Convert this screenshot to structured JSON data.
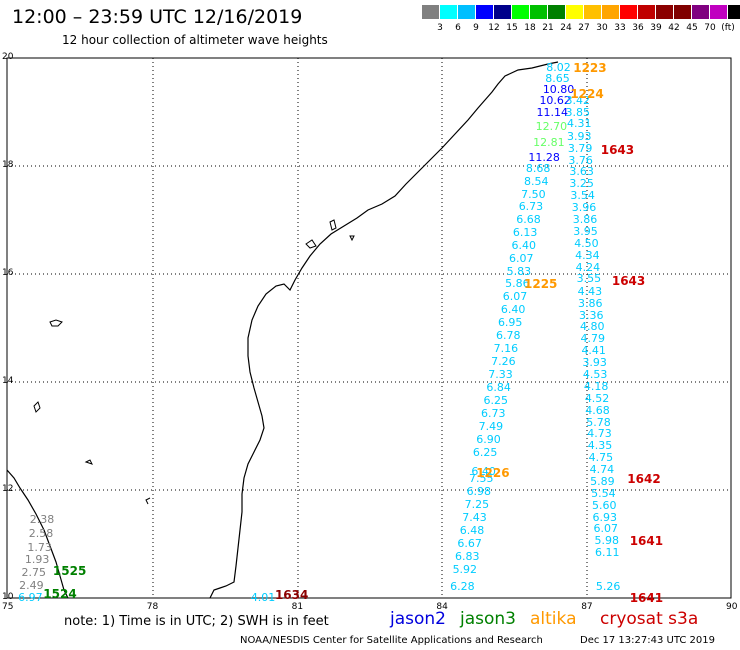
{
  "title": "12:00 – 23:59 UTC 12/16/2019",
  "subtitle": "12 hour collection of altimeter wave heights",
  "scale": {
    "colors": [
      "#808080",
      "#00ffff",
      "#00bfff",
      "#0000ff",
      "#00008b",
      "#00ff00",
      "#00c000",
      "#008000",
      "#ffff00",
      "#ffc000",
      "#ffa500",
      "#ff0000",
      "#c00000",
      "#8b0000",
      "#800000",
      "#800080",
      "#c000c0",
      "#000000"
    ],
    "labels": [
      "3",
      "6",
      "9",
      "12",
      "15",
      "18",
      "21",
      "24",
      "27",
      "30",
      "33",
      "36",
      "39",
      "42",
      "45",
      "70",
      "(ft)"
    ]
  },
  "axes": {
    "x_ticks": [
      "75",
      "78",
      "81",
      "84",
      "87",
      "90"
    ],
    "y_ticks": [
      "20",
      "18",
      "16",
      "14",
      "12",
      "10"
    ],
    "lon_range": [
      75,
      90
    ],
    "lat_range": [
      10,
      20
    ]
  },
  "note": "note: 1) Time is in UTC; 2) SWH is in feet",
  "legend": [
    {
      "name": "jason2",
      "color": "#0000dd"
    },
    {
      "name": "jason3",
      "color": "#008000"
    },
    {
      "name": "altika",
      "color": "#ff9900"
    },
    {
      "name": "cryosat s3a",
      "color": "#cc0000"
    }
  ],
  "footer_left": "NOAA/NESDIS Center for Satellite Applications and Research",
  "footer_right": "Dec 17 13:27:43 UTC 2019",
  "time_labels": [
    {
      "text": "1223",
      "color": "#ff9900",
      "lon": 86.98,
      "lat": 19.81
    },
    {
      "text": "1224",
      "color": "#ff9900",
      "lon": 86.92,
      "lat": 19.34
    },
    {
      "text": "1643",
      "color": "#cc0000",
      "lon": 87.55,
      "lat": 18.29
    },
    {
      "text": "1225",
      "color": "#ff9900",
      "lon": 85.96,
      "lat": 15.81
    },
    {
      "text": "1643",
      "color": "#cc0000",
      "lon": 87.78,
      "lat": 15.87
    },
    {
      "text": "1226",
      "color": "#ff9900",
      "lon": 84.97,
      "lat": 12.32
    },
    {
      "text": "1642",
      "color": "#cc0000",
      "lon": 88.1,
      "lat": 12.21
    },
    {
      "text": "1641",
      "color": "#cc0000",
      "lon": 88.15,
      "lat": 11.05
    },
    {
      "text": "1641",
      "color": "#cc0000",
      "lon": 88.15,
      "lat": 10.0
    },
    {
      "text": "1525",
      "color": "#008000",
      "lon": 76.2,
      "lat": 10.5
    },
    {
      "text": "1524",
      "color": "#008000",
      "lon": 76.0,
      "lat": 10.07
    },
    {
      "text": "1634",
      "color": "#8b0000",
      "lon": 80.8,
      "lat": 10.05
    }
  ],
  "track_altika": {
    "color": "#00ccff",
    "points": [
      [
        "8.02",
        86.42,
        19.81,
        "#00ccff"
      ],
      [
        "8.65",
        86.4,
        19.61,
        "#00ccff"
      ],
      [
        "10.80",
        86.35,
        19.4,
        "#0000ff"
      ],
      [
        "10.62",
        86.28,
        19.2,
        "#0000ff"
      ],
      [
        "11.14",
        86.22,
        18.99,
        "#0000ff"
      ],
      [
        "12.70",
        86.2,
        18.72,
        "#66ff66"
      ],
      [
        "12.81",
        86.15,
        18.42,
        "#66ff66"
      ],
      [
        "11.28",
        86.05,
        18.15,
        "#0000ff"
      ],
      [
        "8.68",
        86.0,
        17.95,
        "#00ccff"
      ],
      [
        "8.54",
        85.96,
        17.71,
        "#00ccff"
      ],
      [
        "7.50",
        85.9,
        17.47,
        "#00ccff"
      ],
      [
        "6.73",
        85.85,
        17.24,
        "#00ccff"
      ],
      [
        "6.68",
        85.8,
        17.0,
        "#00ccff"
      ],
      [
        "6.13",
        85.73,
        16.76,
        "#00ccff"
      ],
      [
        "6.40",
        85.7,
        16.52,
        "#00ccff"
      ],
      [
        "6.07",
        85.65,
        16.28,
        "#00ccff"
      ],
      [
        "5.83",
        85.6,
        16.04,
        "#00ccff"
      ],
      [
        "5.86",
        85.57,
        15.81,
        "#00ccff"
      ],
      [
        "6.07",
        85.52,
        15.57,
        "#00ccff"
      ],
      [
        "6.40",
        85.48,
        15.33,
        "#00ccff"
      ],
      [
        "6.95",
        85.42,
        15.09,
        "#00ccff"
      ],
      [
        "6.78",
        85.38,
        14.85,
        "#00ccff"
      ],
      [
        "7.16",
        85.33,
        14.61,
        "#00ccff"
      ],
      [
        "7.26",
        85.28,
        14.37,
        "#00ccff"
      ],
      [
        "7.33",
        85.22,
        14.13,
        "#00ccff"
      ],
      [
        "6.84",
        85.18,
        13.89,
        "#00ccff"
      ],
      [
        "6.25",
        85.12,
        13.65,
        "#00ccff"
      ],
      [
        "6.73",
        85.07,
        13.41,
        "#00ccff"
      ],
      [
        "7.49",
        85.02,
        13.17,
        "#00ccff"
      ],
      [
        "6.90",
        84.97,
        12.93,
        "#00ccff"
      ],
      [
        "6.25",
        84.9,
        12.69,
        "#00ccff"
      ],
      [
        "6.40",
        84.87,
        12.34,
        "#00ccff"
      ],
      [
        "7.55",
        84.82,
        12.2,
        "#00ccff"
      ],
      [
        "6.98",
        84.77,
        11.96,
        "#00ccff"
      ],
      [
        "7.25",
        84.73,
        11.72,
        "#00ccff"
      ],
      [
        "7.43",
        84.68,
        11.48,
        "#00ccff"
      ],
      [
        "6.48",
        84.63,
        11.24,
        "#00ccff"
      ],
      [
        "6.67",
        84.58,
        11.0,
        "#00ccff"
      ],
      [
        "6.83",
        84.53,
        10.76,
        "#00ccff"
      ],
      [
        "5.92",
        84.48,
        10.52,
        "#00ccff"
      ],
      [
        "6.28",
        84.43,
        10.2,
        "#00ccff"
      ]
    ]
  },
  "track_cryosat": {
    "color": "#00ccff",
    "points": [
      [
        "3.42",
        86.82,
        19.2
      ],
      [
        "3.85",
        86.82,
        18.98
      ],
      [
        "4.31",
        86.85,
        18.77
      ],
      [
        "3.93",
        86.85,
        18.54
      ],
      [
        "3.79",
        86.87,
        18.32
      ],
      [
        "3.76",
        86.88,
        18.1
      ],
      [
        "3.63",
        86.9,
        17.88
      ],
      [
        "3.25",
        86.9,
        17.66
      ],
      [
        "3.54",
        86.92,
        17.44
      ],
      [
        "3.96",
        86.95,
        17.22
      ],
      [
        "3.86",
        86.97,
        17.0
      ],
      [
        "3.95",
        86.98,
        16.78
      ],
      [
        "4.50",
        87.0,
        16.56
      ],
      [
        "4.34",
        87.02,
        16.34
      ],
      [
        "4.24",
        87.03,
        16.12
      ],
      [
        "3.55",
        87.05,
        15.9
      ],
      [
        "4.43",
        87.07,
        15.67
      ],
      [
        "3.86",
        87.08,
        15.45
      ],
      [
        "3.36",
        87.1,
        15.23
      ],
      [
        "4.80",
        87.12,
        15.01
      ],
      [
        "4.79",
        87.13,
        14.79
      ],
      [
        "4.41",
        87.15,
        14.57
      ],
      [
        "3.93",
        87.17,
        14.35
      ],
      [
        "4.53",
        87.18,
        14.13
      ],
      [
        "4.18",
        87.2,
        13.91
      ],
      [
        "4.52",
        87.22,
        13.69
      ],
      [
        "4.68",
        87.23,
        13.47
      ],
      [
        "5.78",
        87.25,
        13.25
      ],
      [
        "4.73",
        87.27,
        13.03
      ],
      [
        "4.35",
        87.28,
        12.81
      ],
      [
        "4.75",
        87.3,
        12.59
      ],
      [
        "4.74",
        87.32,
        12.37
      ],
      [
        "5.89",
        87.33,
        12.15
      ],
      [
        "5.54",
        87.35,
        11.93
      ],
      [
        "5.60",
        87.37,
        11.71
      ],
      [
        "6.93",
        87.38,
        11.49
      ],
      [
        "6.07",
        87.4,
        11.27
      ],
      [
        "5.98",
        87.42,
        11.05
      ],
      [
        "6.11",
        87.43,
        10.83
      ],
      [
        "5.26",
        87.45,
        10.2
      ]
    ]
  },
  "track_jason3": {
    "color": "#808080",
    "points": [
      [
        "2.38",
        75.72,
        11.44,
        "#808080"
      ],
      [
        "2.58",
        75.7,
        11.18,
        "#808080"
      ],
      [
        "1.73",
        75.67,
        10.93,
        "#808080"
      ],
      [
        "1.93",
        75.62,
        10.7,
        "#808080"
      ],
      [
        "2.75",
        75.55,
        10.46,
        "#808080"
      ],
      [
        "2.49",
        75.5,
        10.22,
        "#808080"
      ],
      [
        "6.97",
        75.48,
        10.0,
        "#00ccff"
      ]
    ]
  },
  "track_s3a": {
    "color": "#00ccff",
    "points": [
      [
        "4.01",
        80.3,
        10.0
      ]
    ]
  }
}
